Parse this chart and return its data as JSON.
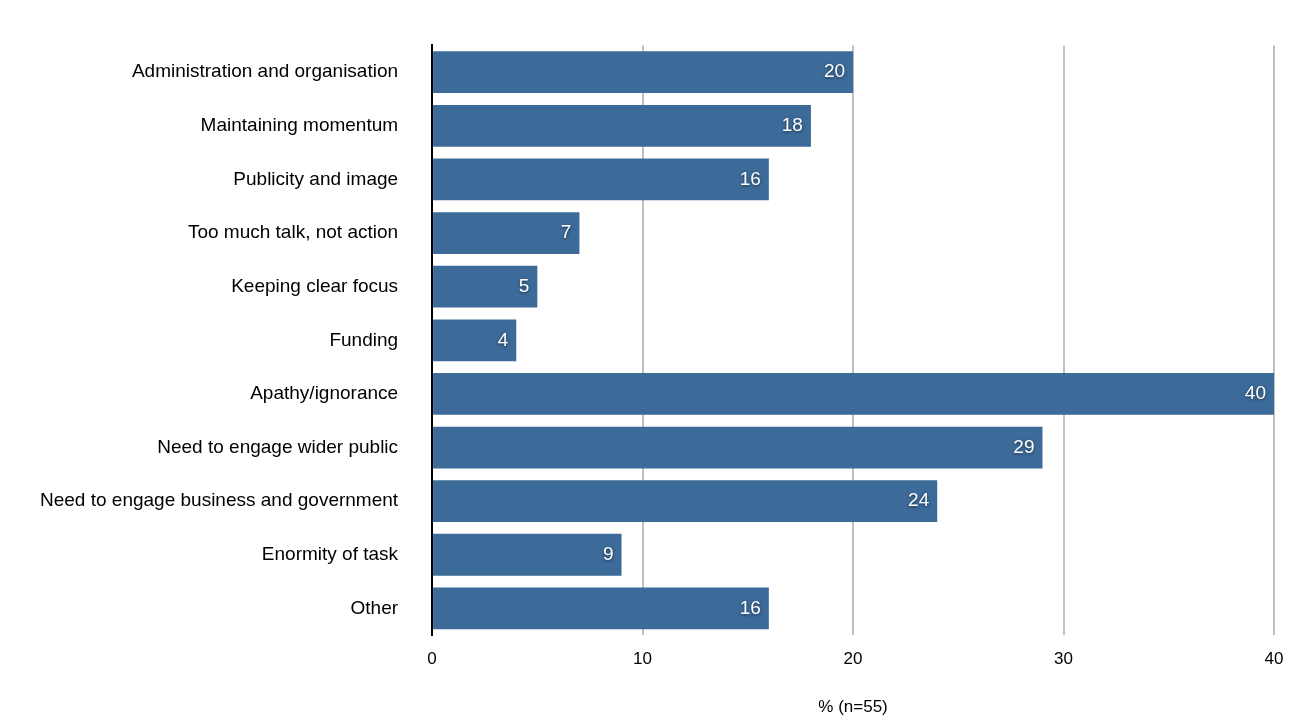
{
  "chart_data": {
    "type": "bar",
    "orientation": "horizontal",
    "xlabel": "% (n=55)",
    "categories": [
      "Administration and organisation",
      "Maintaining momentum",
      "Publicity and image",
      "Too much talk, not action",
      "Keeping clear focus",
      "Funding",
      "Apathy/ignorance",
      "Need to engage wider public",
      "Need to engage business and government",
      "Enormity of task",
      "Other"
    ],
    "values": [
      20,
      18,
      16,
      7,
      5,
      4,
      40,
      29,
      24,
      9,
      16
    ],
    "color": "#3c6a99",
    "xlim": [
      0,
      40
    ],
    "xticks": [
      0,
      10,
      20,
      30,
      40
    ],
    "grid": "x",
    "data_labels": true
  }
}
